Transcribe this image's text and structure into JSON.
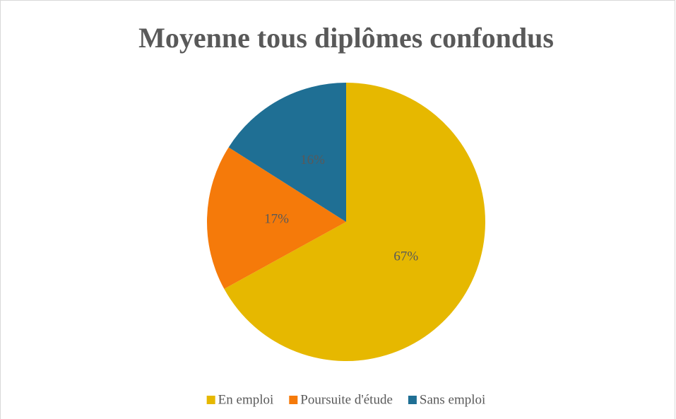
{
  "chart_data": {
    "type": "pie",
    "title": "Moyenne tous diplômes confondus",
    "categories": [
      "En emploi",
      "Poursuite d'étude",
      "Sans emploi"
    ],
    "values": [
      67,
      17,
      16
    ],
    "value_labels": [
      "67%",
      "17%",
      "16%"
    ],
    "colors": [
      "#e6b800",
      "#f57a0a",
      "#1f6f94"
    ],
    "legend": "bottom"
  }
}
